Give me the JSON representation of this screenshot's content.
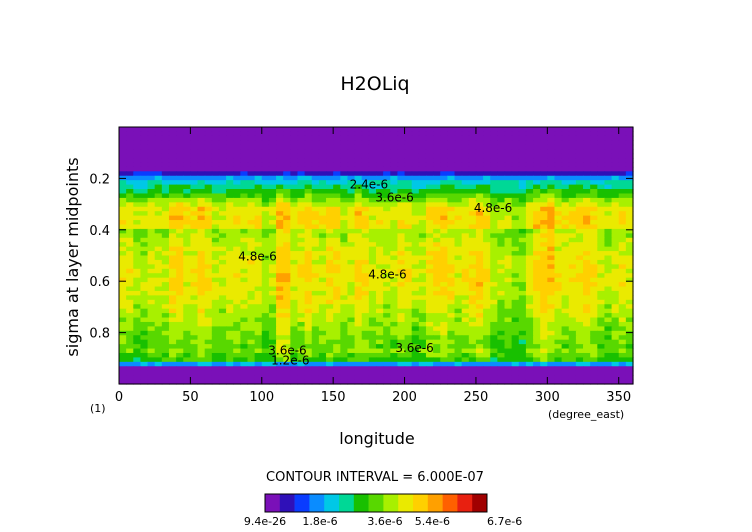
{
  "chart_data": {
    "type": "heatmap",
    "title": "H2OLiq",
    "xlabel": "longitude",
    "ylabel": "sigma at layer midpoints",
    "x_units": "(degree_east)",
    "frame_label": "(1)",
    "xlim": [
      0,
      360
    ],
    "ylim": [
      0.0,
      1.0
    ],
    "y_inverted": true,
    "x_ticks": [
      "0",
      "50",
      "100",
      "150",
      "200",
      "250",
      "300",
      "350"
    ],
    "y_ticks": [
      "0.2",
      "0.4",
      "0.6",
      "0.8"
    ],
    "contour_interval_text": "CONTOUR INTERVAL = 6.000E-07",
    "colorbar": {
      "labels": [
        "9.4e-26",
        "1.8e-6",
        "3.6e-6",
        "5.4e-6",
        "6.7e-6"
      ],
      "colors": [
        "#7a10b8",
        "#2f10b8",
        "#0a3cff",
        "#0a8cff",
        "#00c8e6",
        "#00d896",
        "#18c000",
        "#58d800",
        "#a8f000",
        "#eaea00",
        "#ffd000",
        "#ffa000",
        "#ff6000",
        "#e82010",
        "#a00000"
      ]
    },
    "contour_labels": [
      {
        "text": "2.4e-6",
        "x": 175,
        "y": 0.24
      },
      {
        "text": "3.6e-6",
        "x": 193,
        "y": 0.29
      },
      {
        "text": "4.8e-6",
        "x": 262,
        "y": 0.33
      },
      {
        "text": "4.8e-6",
        "x": 97,
        "y": 0.52
      },
      {
        "text": "4.8e-6",
        "x": 188,
        "y": 0.59
      },
      {
        "text": "3.6e-6",
        "x": 118,
        "y": 0.885
      },
      {
        "text": "1.2e-6",
        "x": 120,
        "y": 0.925
      },
      {
        "text": "3.6e-6",
        "x": 207,
        "y": 0.875
      }
    ]
  }
}
